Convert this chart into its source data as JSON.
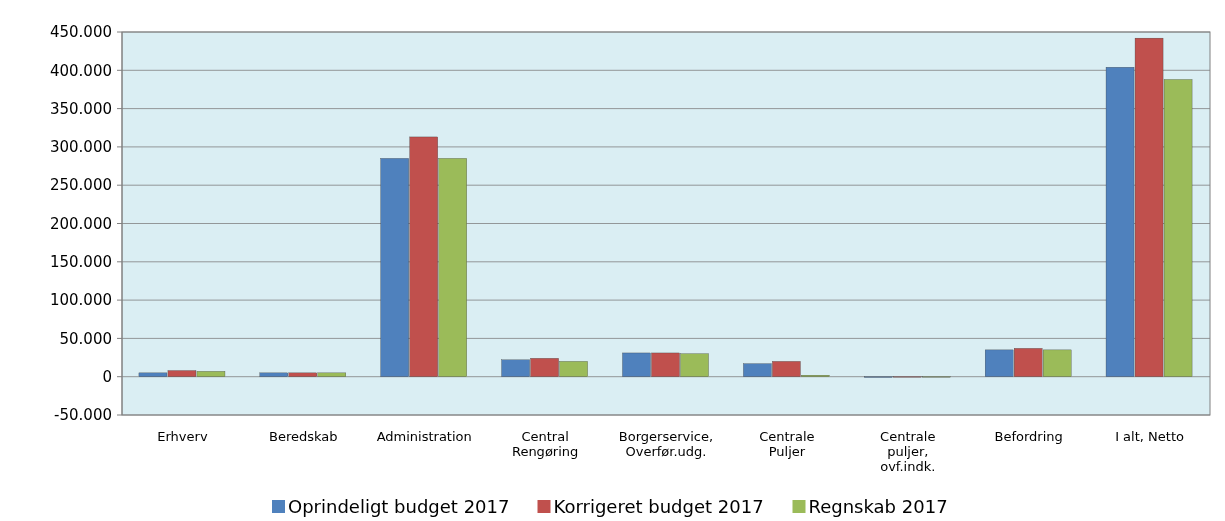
{
  "chart_data": {
    "type": "bar",
    "categories": [
      "Erhverv",
      "Beredskab",
      "Administration",
      "Central\nRengøring",
      "Borgerservice,\nOverfør.udg.",
      "Centrale\nPuljer",
      "Centrale\npuljer,\novf.indk.",
      "Befordring",
      "I alt, Netto"
    ],
    "series": [
      {
        "name": "Oprindeligt budget 2017",
        "color": "#4f81bd",
        "values": [
          5000,
          5000,
          285000,
          22000,
          31000,
          17000,
          -1000,
          35000,
          404000
        ]
      },
      {
        "name": "Korrigeret budget 2017",
        "color": "#c0504d",
        "values": [
          8000,
          5000,
          313000,
          24000,
          31000,
          20000,
          0,
          37000,
          442000
        ]
      },
      {
        "name": "Regnskab 2017",
        "color": "#9bbb59",
        "values": [
          7000,
          5000,
          285000,
          20000,
          30000,
          2000,
          0,
          35000,
          388000
        ]
      }
    ],
    "ylim": [
      -50000,
      450000
    ],
    "yticks": [
      {
        "value": -50000,
        "label": "-50.000"
      },
      {
        "value": 0,
        "label": "0"
      },
      {
        "value": 50000,
        "label": "50.000"
      },
      {
        "value": 100000,
        "label": "100.000"
      },
      {
        "value": 150000,
        "label": "150.000"
      },
      {
        "value": 200000,
        "label": "200.000"
      },
      {
        "value": 250000,
        "label": "250.000"
      },
      {
        "value": 300000,
        "label": "300.000"
      },
      {
        "value": 350000,
        "label": "350.000"
      },
      {
        "value": 400000,
        "label": "400.000"
      },
      {
        "value": 450000,
        "label": "450.000"
      }
    ],
    "grid": "y",
    "legend": "bottom"
  }
}
